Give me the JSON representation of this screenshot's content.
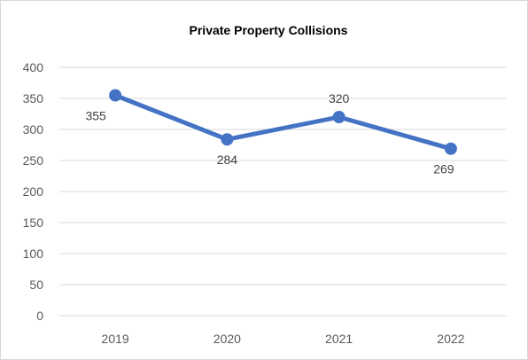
{
  "chart_data": {
    "type": "line",
    "title": "Private Property Collisions",
    "xlabel": "",
    "ylabel": "",
    "categories": [
      "2019",
      "2020",
      "2021",
      "2022"
    ],
    "series": [
      {
        "values": [
          355,
          284,
          320,
          269
        ],
        "color": "#4472c4"
      }
    ],
    "ylim": [
      0,
      400
    ],
    "yticks": [
      0,
      50,
      100,
      150,
      200,
      250,
      300,
      350,
      400
    ],
    "ytick_labels": [
      "0",
      "50",
      "100",
      "150",
      "200",
      "250",
      "300",
      "350",
      "400"
    ],
    "data_labels": [
      "355",
      "284",
      "320",
      "269"
    ],
    "grid": true,
    "gridline_color": "#d9d9d9",
    "legend": "none"
  }
}
